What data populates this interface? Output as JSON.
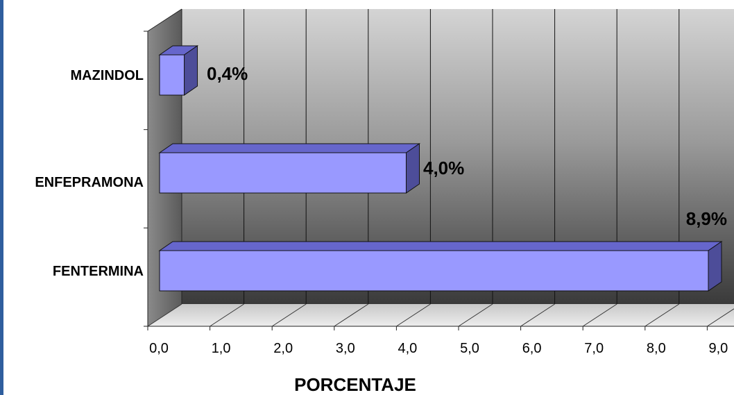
{
  "chart_data": {
    "type": "bar",
    "orientation": "horizontal",
    "style": "3d",
    "categories": [
      "MAZINDOL",
      "ENFEPRAMONA",
      "FENTERMINA"
    ],
    "values": [
      0.4,
      4.0,
      8.9
    ],
    "data_labels": [
      "0,4%",
      "4,0%",
      "8,9%"
    ],
    "x_ticks": [
      "0,0",
      "1,0",
      "2,0",
      "3,0",
      "4,0",
      "5,0",
      "6,0",
      "7,0",
      "8,0",
      "9,0"
    ],
    "xlabel": "PORCENTAJE",
    "ylabel": "",
    "title": "",
    "xlim": [
      0,
      9
    ],
    "grid": true,
    "legend": false,
    "colors": {
      "bar_front": "#9999ff",
      "bar_top": "#6666cc",
      "bar_side": "#4d4d99",
      "wall_light": "#d8d8d8",
      "wall_dark": "#4a4a4a",
      "grid": "#111111"
    }
  }
}
